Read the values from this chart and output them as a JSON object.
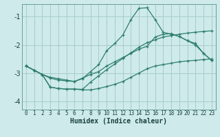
{
  "xlabel": "Humidex (Indice chaleur)",
  "ylabel": "",
  "bg_color": "#ceeaea",
  "grid_color": "#a8cccc",
  "line_color": "#2d7d6e",
  "xlim": [
    -0.5,
    23.5
  ],
  "ylim": [
    -4.3,
    -0.55
  ],
  "yticks": [
    -4,
    -3,
    -2,
    -1
  ],
  "xticks": [
    0,
    1,
    2,
    3,
    4,
    5,
    6,
    7,
    8,
    9,
    10,
    11,
    12,
    13,
    14,
    15,
    16,
    17,
    18,
    19,
    20,
    21,
    22,
    23
  ],
  "line1_y": [
    -2.75,
    -2.9,
    -3.05,
    -3.5,
    -3.55,
    -3.57,
    -3.57,
    -3.6,
    -3.6,
    -3.55,
    -3.48,
    -3.4,
    -3.3,
    -3.15,
    -3.0,
    -2.85,
    -2.75,
    -2.7,
    -2.65,
    -2.6,
    -2.57,
    -2.55,
    -2.52,
    -2.5
  ],
  "line2_y": [
    -2.75,
    -2.9,
    -3.05,
    -3.15,
    -3.2,
    -3.25,
    -3.3,
    -3.2,
    -2.95,
    -2.7,
    -2.2,
    -1.95,
    -1.65,
    -1.1,
    -0.7,
    -0.68,
    -1.1,
    -1.55,
    -1.62,
    -1.7,
    -1.85,
    -2.0,
    -2.3,
    -2.55
  ],
  "line3_y": [
    -2.75,
    -2.9,
    -3.05,
    -3.18,
    -3.25,
    -3.28,
    -3.3,
    -3.18,
    -3.05,
    -2.95,
    -2.75,
    -2.6,
    -2.45,
    -2.3,
    -2.15,
    -2.05,
    -1.72,
    -1.62,
    -1.6,
    -1.7,
    -1.85,
    -1.95,
    -2.3,
    -2.55
  ],
  "line4_y": [
    -2.75,
    -2.9,
    -3.05,
    -3.5,
    -3.55,
    -3.57,
    -3.57,
    -3.58,
    -3.32,
    -3.1,
    -2.88,
    -2.68,
    -2.48,
    -2.28,
    -2.08,
    -1.92,
    -1.82,
    -1.72,
    -1.67,
    -1.62,
    -1.58,
    -1.55,
    -1.52,
    -1.5
  ]
}
